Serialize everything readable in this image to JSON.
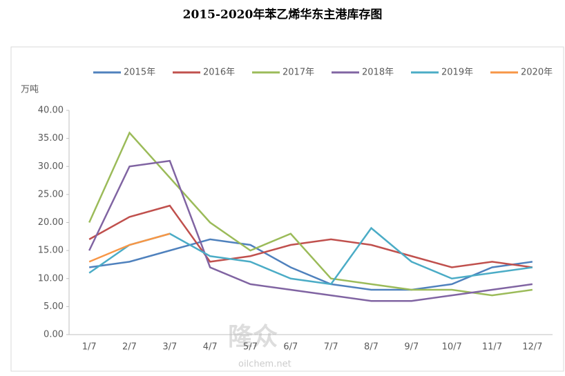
{
  "chart_data": {
    "type": "line",
    "title": "2015-2020年苯乙烯华东主港库存图",
    "y_label": "万吨",
    "watermark": "隆众",
    "watermark_sub": "oilchem.net",
    "categories": [
      "1/7",
      "2/7",
      "3/7",
      "4/7",
      "5/7",
      "6/7",
      "7/7",
      "8/7",
      "9/7",
      "10/7",
      "11/7",
      "12/7"
    ],
    "series": [
      {
        "name": "2015年",
        "color": "#4f81bd",
        "values": [
          12,
          13,
          15,
          17,
          16,
          12,
          9,
          8,
          8,
          9,
          12,
          13
        ]
      },
      {
        "name": "2016年",
        "color": "#c0504d",
        "values": [
          17,
          21,
          23,
          13,
          14,
          16,
          17,
          16,
          14,
          12,
          13,
          12
        ]
      },
      {
        "name": "2017年",
        "color": "#9bbb59",
        "values": [
          20,
          36,
          28,
          20,
          15,
          18,
          10,
          9,
          8,
          8,
          7,
          8
        ]
      },
      {
        "name": "2018年",
        "color": "#8064a2",
        "values": [
          15,
          30,
          31,
          12,
          9,
          8,
          7,
          6,
          6,
          7,
          8,
          9
        ]
      },
      {
        "name": "2019年",
        "color": "#4bacc6",
        "values": [
          11,
          16,
          18,
          14,
          13,
          10,
          9,
          19,
          13,
          10,
          11,
          12
        ]
      },
      {
        "name": "2020年",
        "color": "#f79646",
        "values": [
          13,
          16,
          18,
          null,
          null,
          null,
          null,
          null,
          null,
          null,
          null,
          null
        ]
      }
    ],
    "ylim": [
      0,
      40
    ],
    "yticks": [
      {
        "value": 0,
        "label": "0.00"
      },
      {
        "value": 5,
        "label": "5.00"
      },
      {
        "value": 10,
        "label": "10.00"
      },
      {
        "value": 15,
        "label": "15.00"
      },
      {
        "value": 20,
        "label": "20.00"
      },
      {
        "value": 25,
        "label": "25.00"
      },
      {
        "value": 30,
        "label": "30.00"
      },
      {
        "value": 35,
        "label": "35.00"
      },
      {
        "value": 40,
        "label": "40.00"
      }
    ],
    "legend": "top"
  }
}
